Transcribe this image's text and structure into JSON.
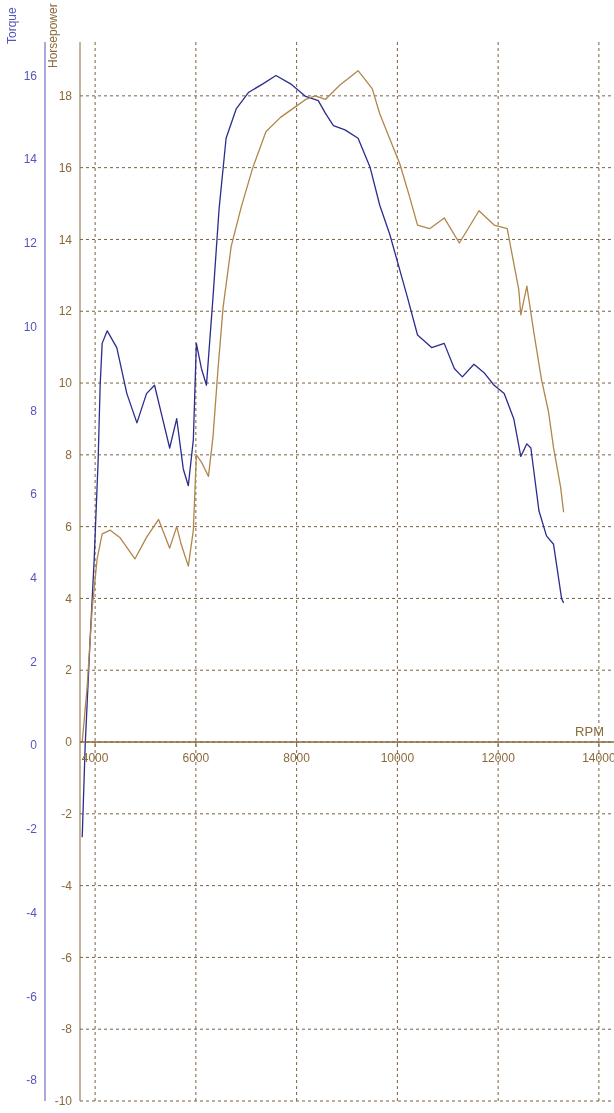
{
  "chart_data": {
    "type": "line",
    "xlabel": "RPM",
    "ylabel": "Torque",
    "y2label": "Horsepower",
    "xlim": [
      3700,
      14300
    ],
    "xticks": [
      4000,
      6000,
      8000,
      10000,
      12000,
      14000
    ],
    "ylim": [
      -8.5,
      16.8
    ],
    "yticks": [
      -8,
      -6,
      -4,
      -2,
      0,
      2,
      4,
      6,
      8,
      10,
      12,
      14,
      16
    ],
    "y2lim": [
      -10,
      19.5
    ],
    "y2ticks": [
      -10,
      -8,
      -6,
      -4,
      -2,
      0,
      2,
      4,
      6,
      8,
      10,
      12,
      14,
      16,
      18
    ],
    "grid": true,
    "series": [
      {
        "color": "#2b2d8c",
        "axis": "y",
        "x": [
          3744,
          3803,
          3900,
          3980,
          4060,
          4100,
          4140,
          4240,
          4430,
          4630,
          4830,
          5020,
          5180,
          5320,
          5480,
          5620,
          5750,
          5850,
          5950,
          6010,
          6110,
          6210,
          6340,
          6460,
          6600,
          6800,
          7050,
          7330,
          7590,
          7880,
          8180,
          8430,
          8570,
          8730,
          8960,
          9220,
          9460,
          9650,
          9850,
          9990,
          10200,
          10400,
          10680,
          10930,
          11130,
          11290,
          11520,
          11720,
          11920,
          12120,
          12310,
          12450,
          12570,
          12650,
          12810,
          12960,
          13100,
          13260,
          13300
        ],
        "values": [
          -2.2,
          0,
          2.5,
          4.4,
          6.8,
          8.6,
          9.6,
          9.9,
          9.5,
          8.4,
          7.7,
          8.4,
          8.6,
          7.9,
          7.1,
          7.8,
          6.6,
          6.2,
          7.3,
          9.6,
          9.0,
          8.6,
          10.7,
          12.8,
          14.5,
          15.2,
          15.6,
          15.8,
          16.0,
          15.8,
          15.5,
          15.4,
          15.1,
          14.8,
          14.7,
          14.5,
          13.8,
          12.9,
          12.2,
          11.6,
          10.7,
          9.8,
          9.5,
          9.6,
          9.0,
          8.8,
          9.1,
          8.9,
          8.6,
          8.4,
          7.8,
          6.9,
          7.2,
          7.1,
          5.6,
          5.0,
          4.8,
          3.5,
          3.4
        ]
      },
      {
        "color": "#b0864a",
        "axis": "y2",
        "x": [
          3744,
          3840,
          3940,
          4040,
          4140,
          4300,
          4490,
          4790,
          5020,
          5260,
          5480,
          5620,
          5710,
          5850,
          5950,
          6010,
          6110,
          6250,
          6340,
          6440,
          6540,
          6700,
          6900,
          7130,
          7390,
          7680,
          7980,
          8180,
          8370,
          8570,
          8860,
          9220,
          9500,
          9650,
          9850,
          10050,
          10240,
          10400,
          10640,
          10930,
          11230,
          11620,
          11920,
          12180,
          12410,
          12450,
          12570,
          12710,
          12860,
          13000,
          13100,
          13240,
          13300
        ],
        "values": [
          0,
          1.5,
          3.7,
          5.1,
          5.8,
          5.9,
          5.7,
          5.1,
          5.7,
          6.2,
          5.4,
          6.0,
          5.5,
          4.9,
          5.9,
          8.0,
          7.8,
          7.4,
          8.5,
          10.4,
          12.1,
          13.8,
          14.9,
          16.0,
          17.0,
          17.4,
          17.7,
          17.9,
          18.0,
          17.9,
          18.3,
          18.7,
          18.2,
          17.5,
          16.8,
          16.1,
          15.2,
          14.4,
          14.3,
          14.6,
          13.9,
          14.8,
          14.4,
          14.3,
          12.6,
          11.9,
          12.7,
          11.4,
          10.1,
          9.2,
          8.2,
          7.1,
          6.4
        ]
      }
    ]
  }
}
